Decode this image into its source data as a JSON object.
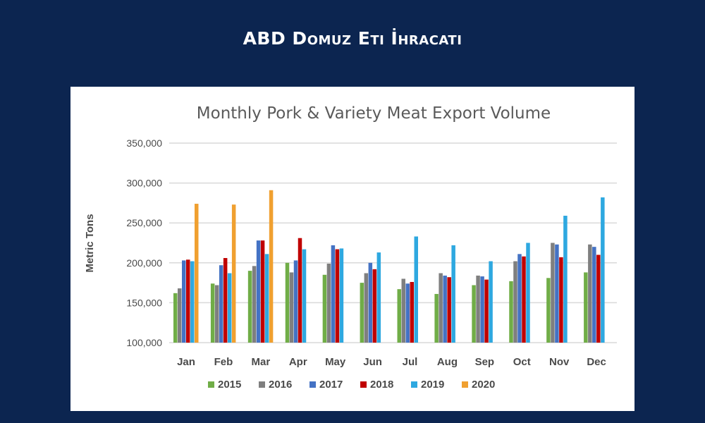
{
  "banner": {
    "title": "ABD Domuz Eti İhracatı"
  },
  "colors": {
    "background": "#0c2550",
    "card": "#ffffff",
    "grid": "#d9d9d9"
  },
  "chart_data": {
    "type": "bar",
    "title": "Monthly Pork & Variety Meat Export Volume",
    "xlabel": "",
    "ylabel": "Metric Tons",
    "ylim": [
      100000,
      350000
    ],
    "yticks": [
      100000,
      150000,
      200000,
      250000,
      300000,
      350000
    ],
    "ytick_labels": [
      "100,000",
      "150,000",
      "200,000",
      "250,000",
      "300,000",
      "350,000"
    ],
    "grid": true,
    "legend_position": "bottom",
    "categories": [
      "Jan",
      "Feb",
      "Mar",
      "Apr",
      "May",
      "Jun",
      "Jul",
      "Aug",
      "Sep",
      "Oct",
      "Nov",
      "Dec"
    ],
    "series": [
      {
        "name": "2015",
        "color": "#70ad47",
        "values": [
          162000,
          174000,
          190000,
          200000,
          185000,
          175000,
          167000,
          161000,
          172000,
          177000,
          181000,
          188000
        ]
      },
      {
        "name": "2016",
        "color": "#7f7f7f",
        "values": [
          168000,
          172000,
          196000,
          188000,
          199000,
          187000,
          180000,
          187000,
          184000,
          202000,
          225000,
          223000
        ]
      },
      {
        "name": "2017",
        "color": "#4472c4",
        "values": [
          203000,
          197000,
          228000,
          203000,
          222000,
          200000,
          174000,
          184000,
          183000,
          211000,
          223000,
          220000
        ]
      },
      {
        "name": "2018",
        "color": "#c00000",
        "values": [
          204000,
          206000,
          228000,
          231000,
          217000,
          192000,
          176000,
          182000,
          179000,
          208000,
          207000,
          210000
        ]
      },
      {
        "name": "2019",
        "color": "#2ea8e0",
        "values": [
          202000,
          187000,
          211000,
          217000,
          218000,
          213000,
          233000,
          222000,
          202000,
          225000,
          259000,
          282000
        ]
      },
      {
        "name": "2020",
        "color": "#f0a030",
        "values": [
          274000,
          273000,
          291000,
          null,
          null,
          null,
          null,
          null,
          null,
          null,
          null,
          null
        ]
      }
    ]
  }
}
